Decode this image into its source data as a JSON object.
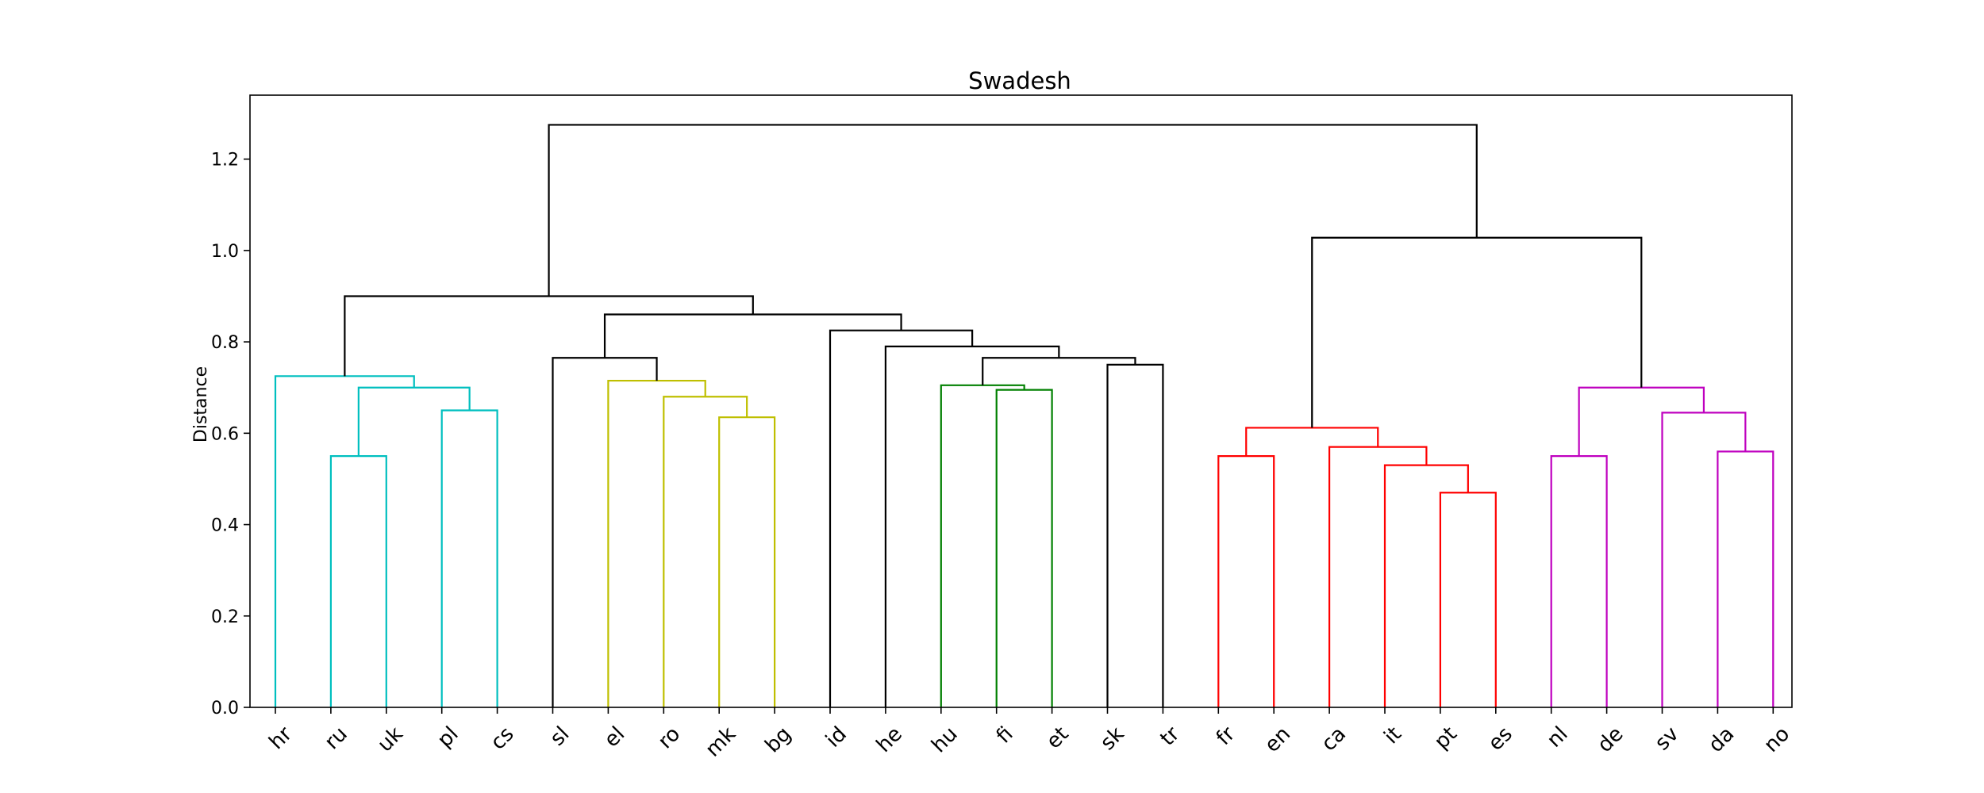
{
  "chart_data": {
    "type": "dendrogram",
    "title": "Swadesh",
    "xlabel": "",
    "ylabel": "Distance",
    "ylim": [
      0,
      1.34
    ],
    "yticks": [
      0.0,
      0.2,
      0.4,
      0.6,
      0.8,
      1.0,
      1.2
    ],
    "ytick_labels": [
      "0.0",
      "0.2",
      "0.4",
      "0.6",
      "0.8",
      "1.0",
      "1.2"
    ],
    "grid": false,
    "leaves": [
      "hr",
      "ru",
      "uk",
      "pl",
      "cs",
      "sl",
      "el",
      "ro",
      "mk",
      "bg",
      "id",
      "he",
      "hu",
      "fi",
      "et",
      "sk",
      "tr",
      "fr",
      "en",
      "ca",
      "it",
      "pt",
      "es",
      "nl",
      "de",
      "sv",
      "da",
      "no"
    ],
    "colors": {
      "cyan": "#00bfbf",
      "olive": "#bfbf00",
      "green": "#008000",
      "red": "#ff0000",
      "magenta": "#bf00bf",
      "black": "#000000"
    },
    "merges": [
      {
        "left": "ru",
        "right": "uk",
        "height": 0.55,
        "color": "cyan"
      },
      {
        "left": "pl",
        "right": "cs",
        "height": 0.65,
        "color": "cyan"
      },
      {
        "left": 0,
        "right": 1,
        "height": 0.7,
        "color": "cyan"
      },
      {
        "left": "hr",
        "right": 2,
        "height": 0.725,
        "color": "cyan"
      },
      {
        "left": "mk",
        "right": "bg",
        "height": 0.635,
        "color": "olive"
      },
      {
        "left": "ro",
        "right": 4,
        "height": 0.68,
        "color": "olive"
      },
      {
        "left": "el",
        "right": 5,
        "height": 0.715,
        "color": "olive"
      },
      {
        "left": "sl",
        "right": 6,
        "height": 0.765,
        "color": "black"
      },
      {
        "left": "fi",
        "right": "et",
        "height": 0.695,
        "color": "green"
      },
      {
        "left": "hu",
        "right": 8,
        "height": 0.705,
        "color": "green"
      },
      {
        "left": "sk",
        "right": "tr",
        "height": 0.75,
        "color": "black"
      },
      {
        "left": 9,
        "right": 10,
        "height": 0.765,
        "color": "black"
      },
      {
        "left": "he",
        "right": 11,
        "height": 0.79,
        "color": "black"
      },
      {
        "left": "id",
        "right": 12,
        "height": 0.825,
        "color": "black"
      },
      {
        "left": 7,
        "right": 13,
        "height": 0.86,
        "color": "black"
      },
      {
        "left": 3,
        "right": 14,
        "height": 0.9,
        "color": "black"
      },
      {
        "left": "pt",
        "right": "es",
        "height": 0.47,
        "color": "red"
      },
      {
        "left": "it",
        "right": 16,
        "height": 0.53,
        "color": "red"
      },
      {
        "left": "ca",
        "right": 17,
        "height": 0.57,
        "color": "red"
      },
      {
        "left": "fr",
        "right": "en",
        "height": 0.55,
        "color": "red"
      },
      {
        "left": 19,
        "right": 18,
        "height": 0.612,
        "color": "red"
      },
      {
        "left": "da",
        "right": "no",
        "height": 0.56,
        "color": "magenta"
      },
      {
        "left": "sv",
        "right": 21,
        "height": 0.645,
        "color": "magenta"
      },
      {
        "left": "nl",
        "right": "de",
        "height": 0.55,
        "color": "magenta"
      },
      {
        "left": 23,
        "right": 22,
        "height": 0.7,
        "color": "magenta"
      },
      {
        "left": 20,
        "right": 24,
        "height": 1.028,
        "color": "black"
      },
      {
        "left": 15,
        "right": 25,
        "height": 1.275,
        "color": "black"
      }
    ]
  }
}
